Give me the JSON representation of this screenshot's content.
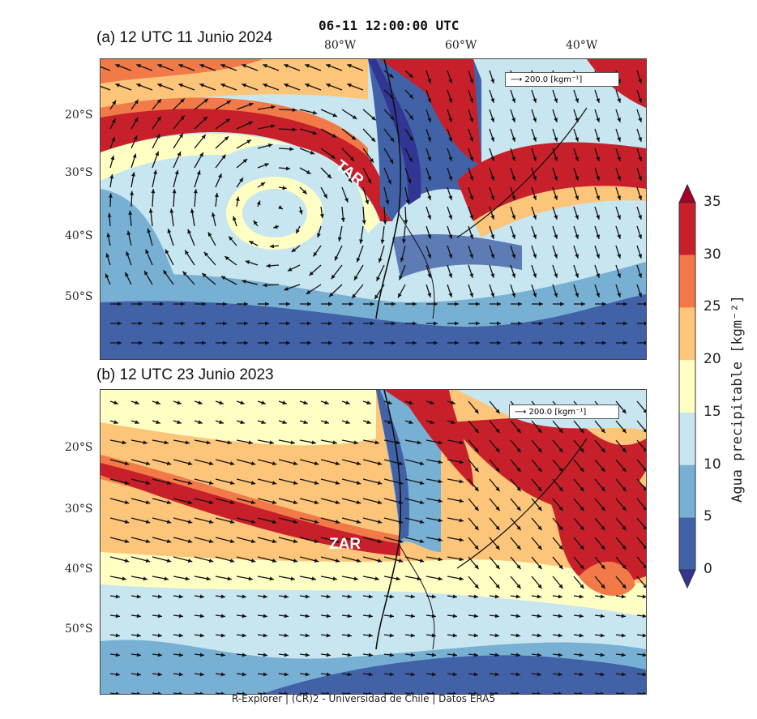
{
  "top_title": "06-11 12:00:00 UTC",
  "panels": [
    {
      "title": "(a) 12 UTC 11 Junio 2024",
      "legend": "200.0 [kgm⁻¹]",
      "feature_label": "TAR"
    },
    {
      "title": "(b) 12 UTC 23 Junio 2023",
      "legend": "200.0 [kgm⁻¹]",
      "feature_label": "ZAR"
    }
  ],
  "lon_labels": [
    "80°W",
    "60°W",
    "40°W"
  ],
  "lat_labels": [
    "20°S",
    "30°S",
    "40°S",
    "50°S"
  ],
  "colorbar": {
    "label": "Agua precipitable [kgm⁻²]",
    "ticks": [
      "35",
      "30",
      "25",
      "20",
      "15",
      "10",
      "5",
      "0"
    ],
    "levels": [
      0,
      5,
      10,
      15,
      20,
      25,
      30,
      35
    ],
    "colors": [
      "#4262a8",
      "#78b0d4",
      "#c8e6f0",
      "#ffffc4",
      "#fdc57a",
      "#f27a48",
      "#c8202a"
    ],
    "under_color": "#313695",
    "over_color": "#a50026",
    "extend": "both"
  },
  "footer": "R-Explorer | (CR)2 - Universidad de Chile | Datos ERA5"
}
